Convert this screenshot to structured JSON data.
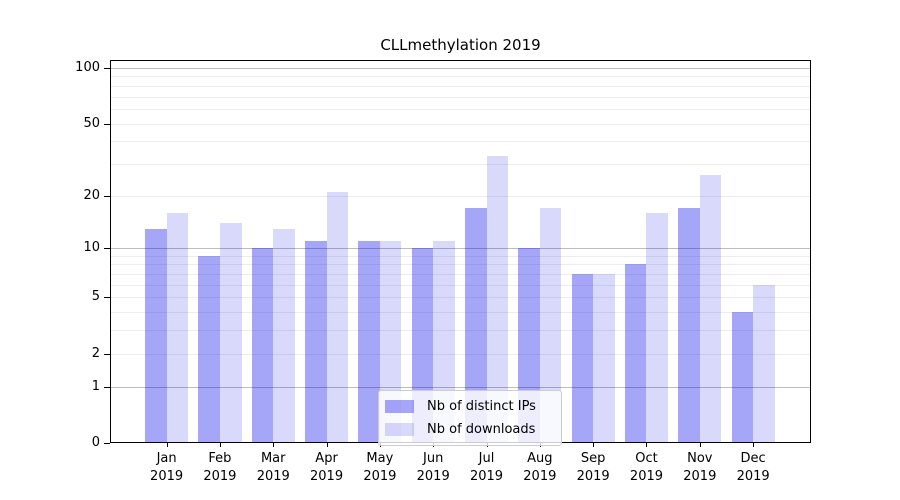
{
  "title": "CLLmethylation 2019",
  "chart_data": {
    "type": "bar",
    "title": "CLLmethylation 2019",
    "categories": [
      "Jan",
      "Feb",
      "Mar",
      "Apr",
      "May",
      "Jun",
      "Jul",
      "Aug",
      "Sep",
      "Oct",
      "Nov",
      "Dec"
    ],
    "category_sublabel": "2019",
    "series": [
      {
        "name": "Nb of distinct IPs",
        "color": "#0000ee",
        "alpha": 0.35,
        "values": [
          13,
          9,
          10,
          11,
          11,
          10,
          17,
          10,
          7,
          8,
          17,
          4
        ]
      },
      {
        "name": "Nb of downloads",
        "color": "#0000ee",
        "alpha": 0.15,
        "values": [
          16,
          14,
          13,
          21,
          11,
          11,
          33,
          17,
          7,
          16,
          26,
          6
        ]
      }
    ],
    "y_scale": "log1p",
    "ylim": [
      0,
      101
    ],
    "y_tick_labels": [
      "0",
      "1",
      "2",
      "5",
      "10",
      "20",
      "50",
      "100"
    ],
    "y_ticks": [
      0,
      1,
      2,
      5,
      10,
      20,
      50,
      100
    ],
    "gridlines_major": [
      1,
      10,
      100
    ],
    "gridlines_minor": [
      2,
      3,
      4,
      5,
      6,
      7,
      8,
      9,
      20,
      30,
      40,
      50,
      60,
      70,
      80,
      90
    ],
    "legend_position": "lower center",
    "colors": {
      "grid_major": "#bdbdbd",
      "grid_minor": "#ededed",
      "axis": "#000000",
      "legend_border": "#cccccc",
      "background": "#ffffff"
    }
  }
}
